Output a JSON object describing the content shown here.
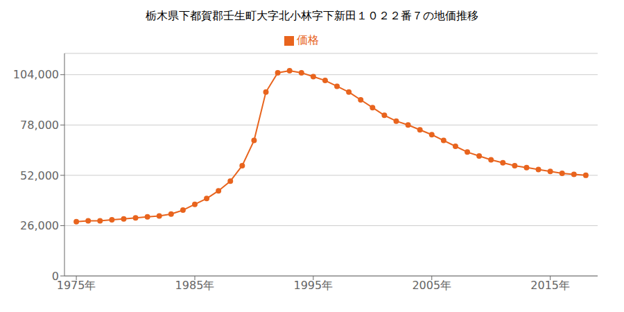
{
  "chart_data": {
    "type": "line",
    "title": "栃木県下都賀郡壬生町大字北小林字下新田１０２２番７の地価推移",
    "x": [
      1975,
      1976,
      1977,
      1978,
      1979,
      1980,
      1981,
      1982,
      1983,
      1984,
      1985,
      1986,
      1987,
      1988,
      1989,
      1990,
      1991,
      1992,
      1993,
      1994,
      1995,
      1996,
      1997,
      1998,
      1999,
      2000,
      2001,
      2002,
      2003,
      2004,
      2005,
      2006,
      2007,
      2008,
      2009,
      2010,
      2011,
      2012,
      2013,
      2014,
      2015,
      2016,
      2017,
      2018
    ],
    "series": [
      {
        "name": "価格",
        "color": "#E8641E",
        "marker": "circle",
        "values": [
          28000,
          28500,
          28500,
          29000,
          29500,
          30000,
          30500,
          31000,
          32000,
          34000,
          37000,
          40000,
          44000,
          49000,
          57000,
          70000,
          95000,
          105000,
          106000,
          105000,
          103000,
          101000,
          98000,
          95000,
          91000,
          87000,
          83000,
          80000,
          78000,
          75500,
          73000,
          70000,
          67000,
          64000,
          62000,
          60000,
          58500,
          57000,
          56000,
          55000,
          54000,
          53000,
          52500,
          52000
        ]
      }
    ],
    "xlim": [
      1974,
      2019
    ],
    "xticks": [
      {
        "value": 1975,
        "label": "1975年"
      },
      {
        "value": 1985,
        "label": "1985年"
      },
      {
        "value": 1995,
        "label": "1995年"
      },
      {
        "value": 2005,
        "label": "2005年"
      },
      {
        "value": 2015,
        "label": "2015年"
      }
    ],
    "ylim": [
      0,
      115000
    ],
    "yticks": [
      0,
      {
        "value": 26000,
        "label": "26,000"
      },
      {
        "value": 52000,
        "label": "52,000"
      },
      {
        "value": 78000,
        "label": "78,000"
      },
      {
        "value": 104000,
        "label": "104,000"
      }
    ],
    "grid": "y",
    "legend": "top"
  }
}
